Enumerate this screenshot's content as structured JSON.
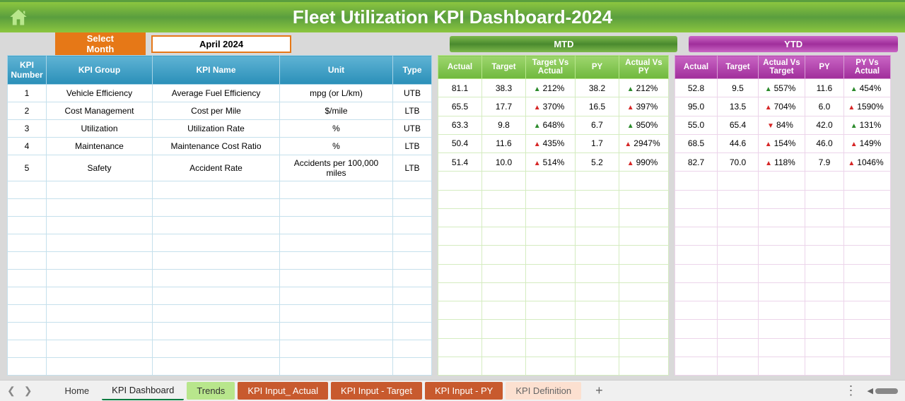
{
  "header": {
    "title": "Fleet Utilization KPI Dashboard-2024"
  },
  "controls": {
    "select_label": "Select Month",
    "month_value": "April 2024"
  },
  "periods": {
    "mtd": "MTD",
    "ytd": "YTD"
  },
  "kpi_headers": {
    "number": "KPI Number",
    "group": "KPI Group",
    "name": "KPI Name",
    "unit": "Unit",
    "type": "Type"
  },
  "mtd_headers": {
    "actual": "Actual",
    "target": "Target",
    "tva": "Target Vs Actual",
    "py": "PY",
    "avp": "Actual Vs PY"
  },
  "ytd_headers": {
    "actual": "Actual",
    "target": "Target",
    "avt": "Actual Vs Target",
    "py": "PY",
    "pva": "PY Vs Actual"
  },
  "kpi_cols": {
    "number_w": 55,
    "group_w": 150,
    "name_w": 180,
    "unit_w": 160,
    "type_w": 55
  },
  "mtd_cols": {
    "actual_w": 62,
    "target_w": 62,
    "tva_w": 70,
    "py_w": 62,
    "avp_w": 70
  },
  "ytd_cols": {
    "actual_w": 60,
    "target_w": 58,
    "avt_w": 66,
    "py_w": 55,
    "pva_w": 66
  },
  "rows": [
    {
      "num": "1",
      "group": "Vehicle Efficiency",
      "name": "Average Fuel Efficiency",
      "unit": "mpg (or L/km)",
      "type": "UTB",
      "mtd": {
        "actual": "81.1",
        "target": "38.3",
        "tva": "212%",
        "tva_dir": "up",
        "py": "38.2",
        "avp": "212%",
        "avp_dir": "up"
      },
      "ytd": {
        "actual": "52.8",
        "target": "9.5",
        "avt": "557%",
        "avt_dir": "up",
        "py": "11.6",
        "pva": "454%",
        "pva_dir": "up"
      }
    },
    {
      "num": "2",
      "group": "Cost Management",
      "name": "Cost per Mile",
      "unit": "$/mile",
      "type": "LTB",
      "mtd": {
        "actual": "65.5",
        "target": "17.7",
        "tva": "370%",
        "tva_dir": "redup",
        "py": "16.5",
        "avp": "397%",
        "avp_dir": "redup"
      },
      "ytd": {
        "actual": "95.0",
        "target": "13.5",
        "avt": "704%",
        "avt_dir": "redup",
        "py": "6.0",
        "pva": "1590%",
        "pva_dir": "redup"
      }
    },
    {
      "num": "3",
      "group": "Utilization",
      "name": "Utilization Rate",
      "unit": "%",
      "type": "UTB",
      "mtd": {
        "actual": "63.3",
        "target": "9.8",
        "tva": "648%",
        "tva_dir": "up",
        "py": "6.7",
        "avp": "950%",
        "avp_dir": "up"
      },
      "ytd": {
        "actual": "55.0",
        "target": "65.4",
        "avt": "84%",
        "avt_dir": "down",
        "py": "42.0",
        "pva": "131%",
        "pva_dir": "up"
      }
    },
    {
      "num": "4",
      "group": "Maintenance",
      "name": "Maintenance Cost Ratio",
      "unit": "%",
      "type": "LTB",
      "mtd": {
        "actual": "50.4",
        "target": "11.6",
        "tva": "435%",
        "tva_dir": "redup",
        "py": "1.7",
        "avp": "2947%",
        "avp_dir": "redup"
      },
      "ytd": {
        "actual": "68.5",
        "target": "44.6",
        "avt": "154%",
        "avt_dir": "redup",
        "py": "46.0",
        "pva": "149%",
        "pva_dir": "redup"
      }
    },
    {
      "num": "5",
      "group": "Safety",
      "name": "Accident Rate",
      "unit": "Accidents per 100,000 miles",
      "type": "LTB",
      "mtd": {
        "actual": "51.4",
        "target": "10.0",
        "tva": "514%",
        "tva_dir": "redup",
        "py": "5.2",
        "avp": "990%",
        "avp_dir": "redup"
      },
      "ytd": {
        "actual": "82.7",
        "target": "70.0",
        "avt": "118%",
        "avt_dir": "redup",
        "py": "7.9",
        "pva": "1046%",
        "pva_dir": "redup"
      }
    }
  ],
  "empty_rows": 11,
  "tabs": {
    "home": "Home",
    "active": "KPI Dashboard",
    "trends": "Trends",
    "input_actual": "KPI Input_ Actual",
    "input_target": "KPI Input - Target",
    "input_py": "KPI Input - PY",
    "definition": "KPI Definition"
  }
}
